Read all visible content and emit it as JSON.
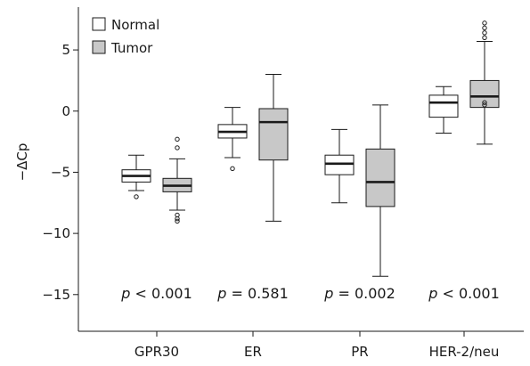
{
  "chart_data": {
    "type": "boxplot",
    "categories": [
      "GPR30",
      "ER",
      "PR",
      "HER-2/neu"
    ],
    "ylabel": "−ΔCp",
    "ylim": [
      -18,
      8.5
    ],
    "yticks": [
      5,
      0,
      -5,
      -10,
      -15
    ],
    "ytick_labels": [
      "5",
      "0",
      "−5",
      "−10",
      "−15"
    ],
    "legend": {
      "placement": "top-left",
      "entries": [
        "Normal",
        "Tumor"
      ]
    },
    "colors": {
      "Normal": "#ffffff",
      "Tumor": "#c8c8c8",
      "stroke": "#1a1a1a"
    },
    "series": [
      {
        "name": "Normal",
        "boxes": [
          {
            "whislo": -6.5,
            "q1": -5.8,
            "med": -5.3,
            "q3": -4.8,
            "whishi": -3.6,
            "fliers": [
              -7.0
            ]
          },
          {
            "whislo": -3.8,
            "q1": -2.2,
            "med": -1.7,
            "q3": -1.1,
            "whishi": 0.3,
            "fliers": [
              -4.7
            ]
          },
          {
            "whislo": -7.5,
            "q1": -5.2,
            "med": -4.3,
            "q3": -3.6,
            "whishi": -1.5,
            "fliers": []
          },
          {
            "whislo": -1.8,
            "q1": -0.5,
            "med": 0.7,
            "q3": 1.3,
            "whishi": 2.0,
            "fliers": []
          }
        ]
      },
      {
        "name": "Tumor",
        "boxes": [
          {
            "whislo": -8.1,
            "q1": -6.6,
            "med": -6.1,
            "q3": -5.5,
            "whishi": -3.9,
            "fliers": [
              -8.5,
              -8.8,
              -9.0,
              -3.0,
              -2.3
            ]
          },
          {
            "whislo": -9.0,
            "q1": -4.0,
            "med": -0.9,
            "q3": 0.2,
            "whishi": 3.0,
            "fliers": []
          },
          {
            "whislo": -13.5,
            "q1": -7.8,
            "med": -5.8,
            "q3": -3.1,
            "whishi": 0.5,
            "fliers": []
          },
          {
            "whislo": -2.7,
            "q1": 0.3,
            "med": 1.2,
            "q3": 2.5,
            "whishi": 5.7,
            "fliers": [
              0.5,
              0.7,
              6.0,
              6.4,
              6.8,
              7.2
            ]
          }
        ]
      }
    ],
    "annotations": [
      {
        "category": "GPR30",
        "p": "p",
        "rel": "<",
        "value": "0.001"
      },
      {
        "category": "ER",
        "p": "p",
        "rel": "=",
        "value": "0.581"
      },
      {
        "category": "PR",
        "p": "p",
        "rel": "=",
        "value": "0.002"
      },
      {
        "category": "HER-2/neu",
        "p": "p",
        "rel": "<",
        "value": "0.001"
      }
    ]
  }
}
